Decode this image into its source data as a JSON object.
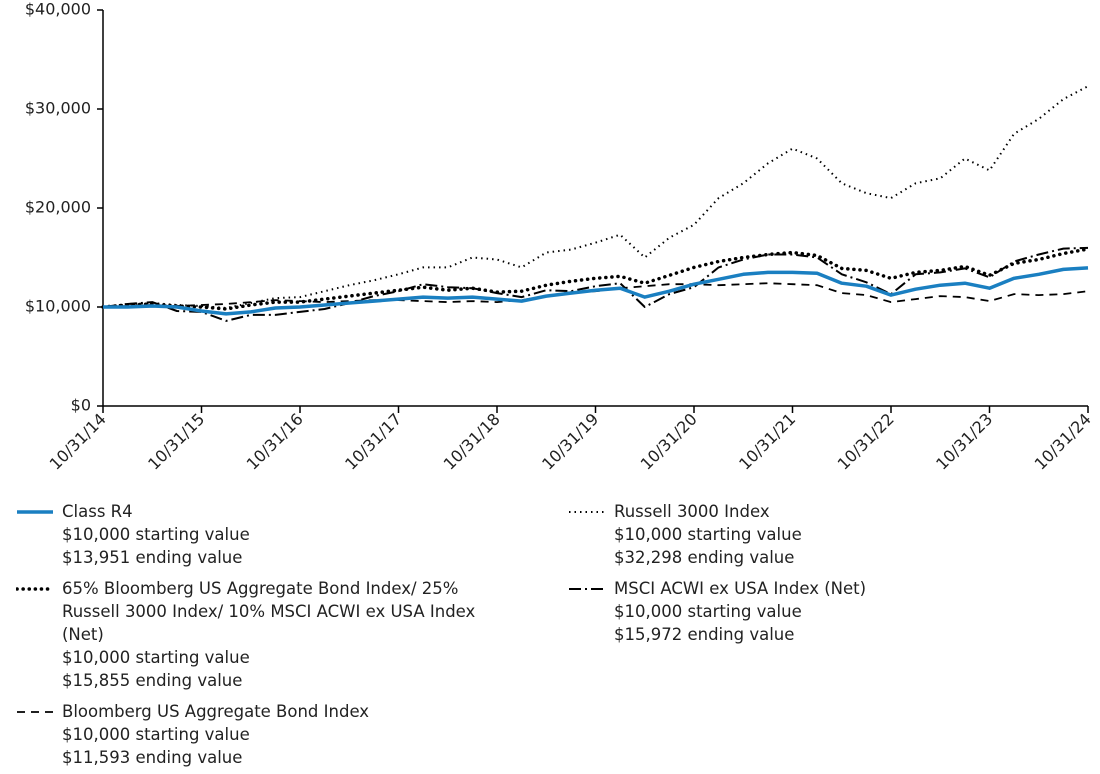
{
  "chart_data": {
    "type": "line",
    "categories": [
      "10/31/14",
      null,
      null,
      null,
      "10/31/15",
      null,
      null,
      null,
      "10/31/16",
      null,
      null,
      null,
      "10/31/17",
      null,
      null,
      null,
      "10/31/18",
      null,
      null,
      null,
      "10/31/19",
      null,
      null,
      null,
      "10/31/20",
      null,
      null,
      null,
      "10/31/21",
      null,
      null,
      null,
      "10/31/22",
      null,
      null,
      null,
      "10/31/23",
      null,
      null,
      null,
      "10/31/24"
    ],
    "ylim": [
      0,
      40000
    ],
    "yticks": [
      {
        "value": 0,
        "label": "$0"
      },
      {
        "value": 10000,
        "label": "$10,000"
      },
      {
        "value": 20000,
        "label": "$20,000"
      },
      {
        "value": 30000,
        "label": "$30,000"
      },
      {
        "value": 40000,
        "label": "$40,000"
      }
    ],
    "series": [
      {
        "name": "Class R4",
        "color": "#1a7fc1",
        "style": "solid",
        "start_label": "$10,000 starting value",
        "end_label": "$13,951 ending value",
        "values": [
          10000,
          10000,
          10100,
          10000,
          9600,
          9300,
          9500,
          9900,
          10000,
          10200,
          10400,
          10600,
          10800,
          11000,
          10900,
          11000,
          10800,
          10600,
          11100,
          11400,
          11700,
          11900,
          11000,
          11600,
          12300,
          12800,
          13300,
          13500,
          13500,
          13400,
          12400,
          12100,
          11200,
          11800,
          12200,
          12400,
          11900,
          12900,
          13300,
          13800,
          13951
        ]
      },
      {
        "name": "Russell 3000 Index",
        "color": "#000000",
        "style": "fine-dotted",
        "start_label": "$10,000 starting value",
        "end_label": "$32,298 ending value",
        "values": [
          10000,
          10300,
          10400,
          10200,
          10100,
          9900,
          10400,
          10900,
          11000,
          11600,
          12200,
          12700,
          13300,
          14000,
          14000,
          15000,
          14800,
          14000,
          15500,
          15800,
          16500,
          17300,
          15000,
          17000,
          18300,
          21000,
          22500,
          24500,
          26000,
          25000,
          22500,
          21500,
          21000,
          22500,
          23000,
          25000,
          23800,
          27500,
          29000,
          31000,
          32298
        ]
      },
      {
        "name": "65% Bloomberg US Aggregate Bond Index/ 25% Russell 3000 Index/ 10% MSCI ACWI ex USA Index (Net)",
        "color": "#000000",
        "style": "heavy-dotted",
        "start_label": "$10,000 starting value",
        "end_label": "$15,855 ending value",
        "values": [
          10000,
          10200,
          10300,
          10100,
          10000,
          9800,
          10200,
          10500,
          10500,
          10800,
          11100,
          11400,
          11700,
          12000,
          11700,
          11900,
          11500,
          11600,
          12200,
          12600,
          12900,
          13100,
          12400,
          13200,
          14000,
          14600,
          15000,
          15300,
          15500,
          15200,
          13900,
          13700,
          12900,
          13500,
          13700,
          14100,
          13200,
          14400,
          14800,
          15400,
          15855
        ]
      },
      {
        "name": "MSCI ACWI ex USA Index (Net)",
        "color": "#000000",
        "style": "dash-dot",
        "start_label": "$10,000 starting value",
        "end_label": "$15,972 ending value",
        "values": [
          10000,
          10300,
          10500,
          9600,
          9500,
          8600,
          9200,
          9200,
          9500,
          9800,
          10400,
          11100,
          11600,
          12300,
          12000,
          11900,
          11400,
          11000,
          11700,
          11600,
          12100,
          12400,
          10000,
          11300,
          12000,
          14000,
          14800,
          15300,
          15300,
          15000,
          13300,
          12500,
          11300,
          13300,
          13500,
          13900,
          13000,
          14600,
          15300,
          15900,
          15972
        ]
      },
      {
        "name": "Bloomberg US Aggregate Bond Index",
        "color": "#000000",
        "style": "dashed",
        "start_label": "$10,000 starting value",
        "end_label": "$11,593 ending value",
        "values": [
          10000,
          10100,
          10200,
          10100,
          10200,
          10300,
          10500,
          10700,
          10600,
          10500,
          10600,
          10700,
          10700,
          10600,
          10500,
          10600,
          10500,
          10700,
          11100,
          11500,
          11600,
          11900,
          12100,
          12300,
          12300,
          12200,
          12300,
          12400,
          12300,
          12200,
          11400,
          11200,
          10500,
          10800,
          11100,
          11000,
          10600,
          11300,
          11200,
          11300,
          11593
        ]
      }
    ]
  }
}
